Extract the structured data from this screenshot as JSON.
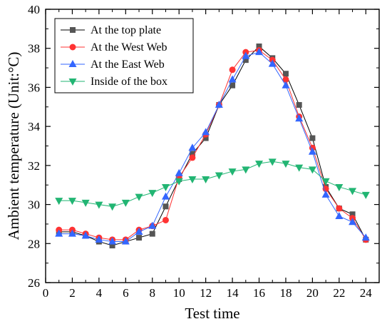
{
  "chart_data": {
    "type": "line",
    "title": "",
    "xlabel": "Test time",
    "ylabel": "Ambient temperature (Unit:°C)",
    "xlim": [
      0,
      25
    ],
    "ylim": [
      26,
      40
    ],
    "x_ticks": [
      0,
      2,
      4,
      6,
      8,
      10,
      12,
      14,
      16,
      18,
      20,
      22,
      24
    ],
    "y_ticks": [
      26,
      28,
      30,
      32,
      34,
      36,
      38,
      40
    ],
    "grid": false,
    "legend_position": "top-left",
    "x": [
      1,
      2,
      3,
      4,
      5,
      6,
      7,
      8,
      9,
      10,
      11,
      12,
      13,
      14,
      15,
      16,
      17,
      18,
      19,
      20,
      21,
      22,
      23,
      24
    ],
    "series": [
      {
        "name": "At the top plate",
        "color": "#555555",
        "marker": "square",
        "values": [
          28.6,
          28.6,
          28.4,
          28.1,
          27.9,
          28.1,
          28.3,
          28.5,
          29.9,
          31.3,
          32.6,
          33.4,
          35.1,
          36.1,
          37.4,
          38.1,
          37.5,
          36.7,
          35.1,
          33.4,
          30.9,
          29.8,
          29.5,
          28.2
        ]
      },
      {
        "name": "At the West Web",
        "color": "#ff3333",
        "marker": "circle",
        "values": [
          28.7,
          28.7,
          28.5,
          28.3,
          28.2,
          28.2,
          28.7,
          28.9,
          29.2,
          31.4,
          32.4,
          33.6,
          35.1,
          36.9,
          37.8,
          37.9,
          37.4,
          36.4,
          34.5,
          32.9,
          30.8,
          29.8,
          29.3,
          28.2
        ]
      },
      {
        "name": "At the East Web",
        "color": "#3366ff",
        "marker": "triangle-up",
        "values": [
          28.5,
          28.5,
          28.4,
          28.2,
          28.1,
          28.1,
          28.6,
          28.9,
          30.4,
          31.6,
          32.9,
          33.7,
          35.1,
          36.4,
          37.6,
          37.8,
          37.2,
          36.1,
          34.4,
          32.7,
          30.5,
          29.4,
          29.1,
          28.3
        ]
      },
      {
        "name": "Inside of the box",
        "color": "#22b573",
        "marker": "triangle-down",
        "values": [
          30.2,
          30.2,
          30.1,
          30.0,
          29.9,
          30.1,
          30.4,
          30.6,
          30.9,
          31.2,
          31.3,
          31.3,
          31.5,
          31.7,
          31.8,
          32.1,
          32.2,
          32.1,
          31.9,
          31.8,
          31.2,
          30.9,
          30.7,
          30.5
        ]
      }
    ]
  }
}
